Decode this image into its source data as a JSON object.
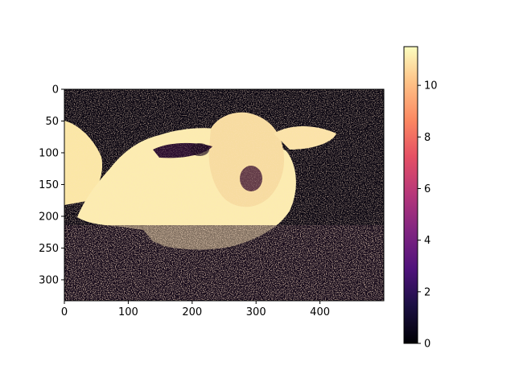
{
  "chart_data": {
    "type": "heatmap",
    "title": "",
    "xlabel": "",
    "ylabel": "",
    "colormap": "magma",
    "image_size": {
      "width": 500,
      "height": 333
    },
    "xlim": [
      0,
      500
    ],
    "ylim": [
      333,
      0
    ],
    "x_ticks": [
      0,
      100,
      200,
      300,
      400
    ],
    "y_ticks": [
      0,
      50,
      100,
      150,
      200,
      250,
      300
    ],
    "colorbar": {
      "vmin": 0,
      "vmax": 11.5,
      "ticks": [
        0,
        2,
        4,
        6,
        8,
        10
      ]
    },
    "grid": false,
    "subject": "lamb lying in grass, high-contrast edge/texture rendering"
  }
}
